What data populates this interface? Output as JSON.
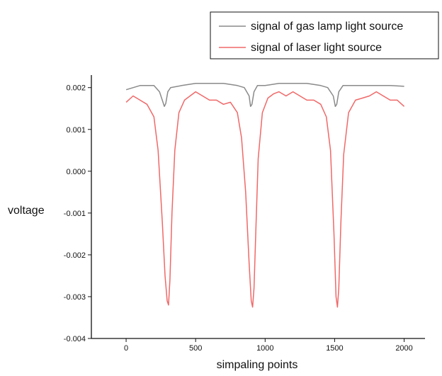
{
  "chart_data": {
    "type": "line",
    "xlabel": "simpaling points",
    "ylabel": "voltage",
    "xlim": [
      -250,
      2150
    ],
    "ylim": [
      -0.004,
      0.0023
    ],
    "xticks": [
      0,
      500,
      1000,
      1500,
      2000
    ],
    "xtick_labels": [
      "0",
      "500",
      "1000",
      "1500",
      "2000"
    ],
    "yticks": [
      0.002,
      0.001,
      0.0,
      -0.001,
      -0.002,
      -0.003,
      -0.004
    ],
    "ytick_labels": [
      "0.002",
      "0.001",
      "0.000",
      "-0.001",
      "-0.002",
      "-0.003",
      "-0.004"
    ],
    "grid": false,
    "legend_position": "top-right",
    "series": [
      {
        "name": "signal of gas lamp light source",
        "color": "#8a8a8a",
        "x": [
          0,
          100,
          200,
          240,
          265,
          275,
          285,
          300,
          320,
          400,
          500,
          600,
          700,
          800,
          850,
          885,
          895,
          905,
          920,
          945,
          1000,
          1100,
          1200,
          1300,
          1400,
          1450,
          1490,
          1505,
          1515,
          1530,
          1560,
          1600,
          1700,
          1800,
          1900,
          2000
        ],
        "y": [
          0.00195,
          0.00205,
          0.00205,
          0.0019,
          0.00165,
          0.00155,
          0.00162,
          0.0019,
          0.002,
          0.00205,
          0.0021,
          0.0021,
          0.0021,
          0.00205,
          0.002,
          0.0018,
          0.00155,
          0.0016,
          0.0019,
          0.00205,
          0.00205,
          0.0021,
          0.0021,
          0.0021,
          0.00205,
          0.002,
          0.0018,
          0.00155,
          0.0016,
          0.0019,
          0.00205,
          0.00205,
          0.00205,
          0.00205,
          0.00205,
          0.00203
        ]
      },
      {
        "name": "signal of laser light source",
        "color": "#f06868",
        "x": [
          0,
          50,
          100,
          150,
          200,
          230,
          260,
          280,
          295,
          305,
          315,
          330,
          350,
          380,
          420,
          460,
          500,
          550,
          600,
          650,
          700,
          750,
          800,
          830,
          860,
          885,
          900,
          910,
          920,
          935,
          950,
          980,
          1020,
          1060,
          1100,
          1150,
          1200,
          1250,
          1300,
          1350,
          1400,
          1440,
          1470,
          1495,
          1510,
          1520,
          1530,
          1545,
          1565,
          1600,
          1650,
          1700,
          1750,
          1800,
          1850,
          1900,
          1950,
          2000
        ],
        "y": [
          0.00165,
          0.0018,
          0.0017,
          0.0016,
          0.0013,
          0.0005,
          -0.0012,
          -0.0025,
          -0.0031,
          -0.0032,
          -0.0026,
          -0.001,
          0.0005,
          0.0014,
          0.0017,
          0.0018,
          0.0019,
          0.0018,
          0.0017,
          0.0017,
          0.0016,
          0.00165,
          0.0014,
          0.0008,
          -0.0005,
          -0.0022,
          -0.0031,
          -0.00325,
          -0.0028,
          -0.0012,
          0.0003,
          0.0014,
          0.00175,
          0.00185,
          0.0019,
          0.0018,
          0.0019,
          0.0018,
          0.0017,
          0.0017,
          0.0016,
          0.0013,
          0.0005,
          -0.0015,
          -0.003,
          -0.00325,
          -0.0028,
          -0.0012,
          0.0004,
          0.0014,
          0.0017,
          0.00175,
          0.0018,
          0.0019,
          0.0018,
          0.0017,
          0.0017,
          0.00155
        ]
      }
    ]
  }
}
